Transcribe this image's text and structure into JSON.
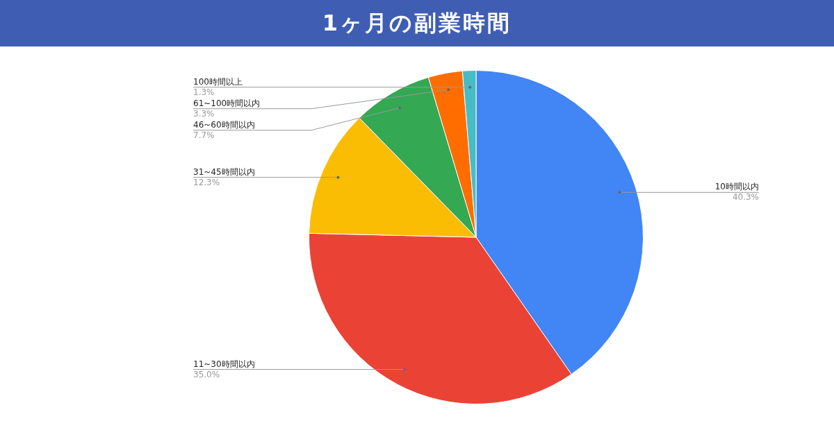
{
  "chart_data": {
    "type": "pie",
    "title": "1ヶ月の副業時間",
    "categories": [
      "10時間以内",
      "11~30時間以内",
      "31~45時間以内",
      "46~60時間以内",
      "61~100時間以内",
      "100時間以上"
    ],
    "values": [
      40.3,
      35.0,
      12.3,
      7.7,
      3.3,
      1.3
    ],
    "value_labels": [
      "40.3%",
      "35.0%",
      "12.3%",
      "7.7%",
      "3.3%",
      "1.3%"
    ],
    "colors": [
      "#4285f4",
      "#ea4335",
      "#fbbc04",
      "#34a853",
      "#ff6d01",
      "#46bdc6"
    ],
    "legend": false
  }
}
